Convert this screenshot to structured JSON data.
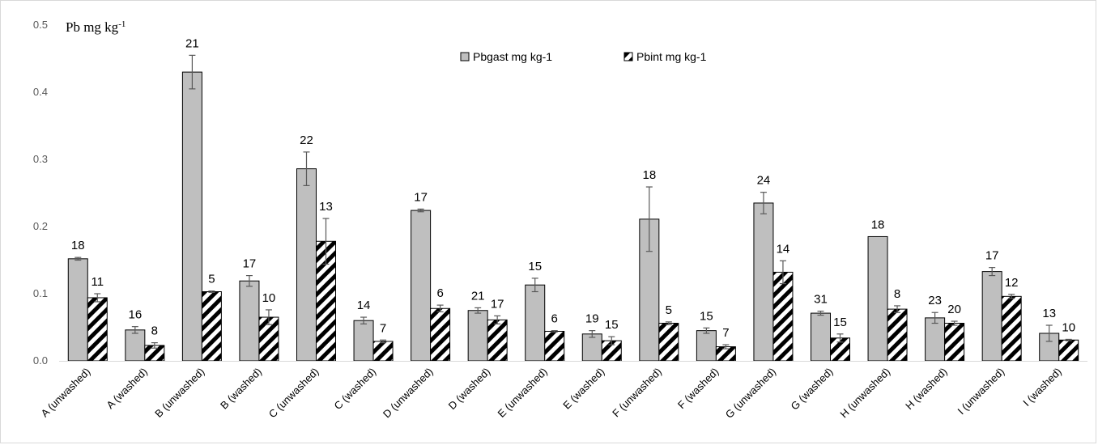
{
  "chart_data": {
    "type": "bar",
    "y_title": "Pb mg kg",
    "y_title_superscript": "-1",
    "ylim": [
      0,
      0.5
    ],
    "yticks": [
      "0.0",
      "0.1",
      "0.2",
      "0.3",
      "0.4",
      "0.5"
    ],
    "grid": false,
    "legend_position": "top-center",
    "categories": [
      "A (unwashed)",
      "A (washed)",
      "B (unwashed)",
      "B (washed)",
      "C (unwashed)",
      "C (washed)",
      "D (unwashed)",
      "D (washed)",
      "E (unwashed)",
      "E (washed)",
      "F (unwashed)",
      "F (washed)",
      "G (unwashed)",
      "G (washed)",
      "H (unwashed)",
      "H (washed)",
      "I (unwashed)",
      "I (washed)"
    ],
    "series": [
      {
        "name": "Pbgast mg kg-1",
        "pattern": "solid-gray",
        "values": [
          0.152,
          0.046,
          0.43,
          0.119,
          0.286,
          0.06,
          0.224,
          0.075,
          0.113,
          0.04,
          0.211,
          0.045,
          0.235,
          0.071,
          0.185,
          0.064,
          0.133,
          0.041
        ],
        "errors": [
          0.002,
          0.005,
          0.025,
          0.008,
          0.025,
          0.005,
          0.002,
          0.004,
          0.01,
          0.005,
          0.048,
          0.004,
          0.016,
          0.003,
          0.0,
          0.008,
          0.006,
          0.012
        ],
        "labels": [
          "18",
          "16",
          "21",
          "17",
          "22",
          "14",
          "17",
          "21",
          "15",
          "19",
          "18",
          "15",
          "24",
          "31",
          "18",
          "23",
          "17",
          "13"
        ]
      },
      {
        "name": "Pbint mg kg-1",
        "pattern": "black-diagonal-stripes",
        "values": [
          0.094,
          0.023,
          0.103,
          0.065,
          0.178,
          0.029,
          0.078,
          0.061,
          0.044,
          0.03,
          0.056,
          0.021,
          0.132,
          0.034,
          0.077,
          0.056,
          0.096,
          0.031
        ],
        "errors": [
          0.006,
          0.004,
          0.001,
          0.011,
          0.034,
          0.002,
          0.005,
          0.006,
          0.001,
          0.006,
          0.002,
          0.003,
          0.017,
          0.006,
          0.005,
          0.003,
          0.003,
          0.001
        ],
        "labels": [
          "11",
          "8",
          "5",
          "10",
          "13",
          "7",
          "6",
          "17",
          "6",
          "15",
          "5",
          "7",
          "14",
          "15",
          "8",
          "20",
          "12",
          "10"
        ]
      }
    ],
    "colors": {
      "gray_fill": "#bfbfbf",
      "stripe": "#000000",
      "axis": "#d9d9d9",
      "error_bar": "#595959"
    }
  }
}
